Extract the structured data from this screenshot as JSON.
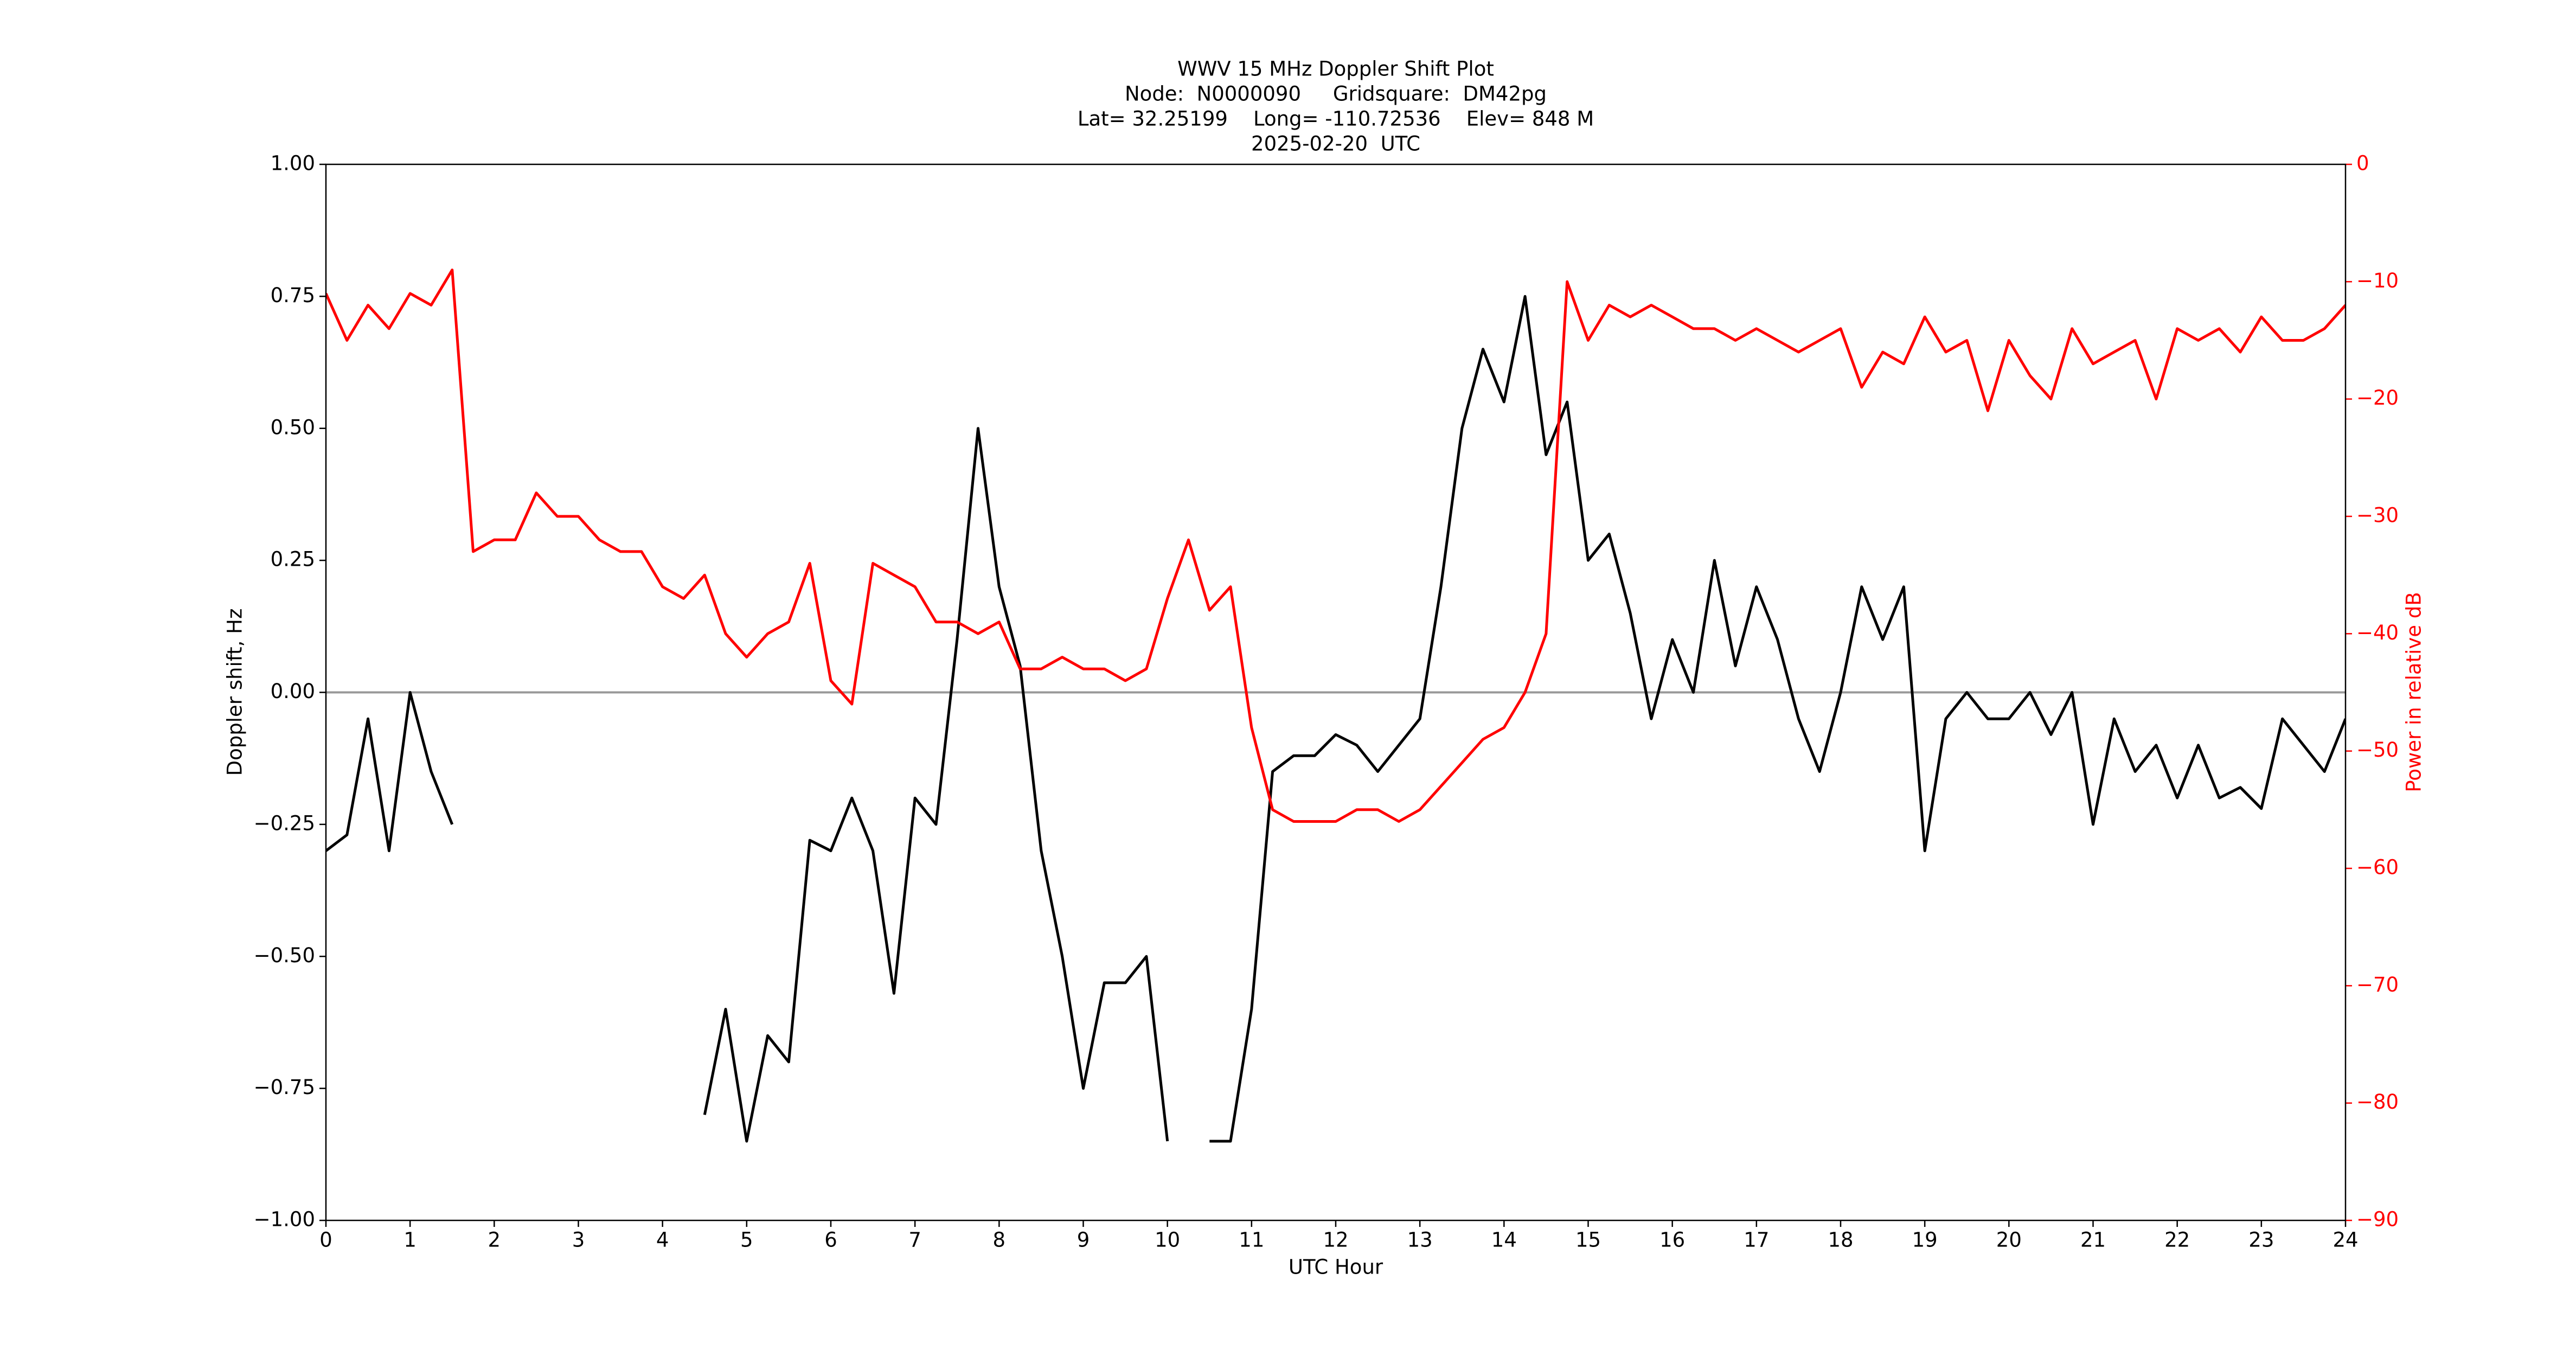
{
  "chart_data": {
    "type": "line",
    "title": "WWV 15 MHz Doppler Shift Plot",
    "subtitle": [
      "Node:  N0000090     Gridsquare:  DM42pg",
      "Lat= 32.25199    Long= -110.72536    Elev= 848 M",
      "2025-02-20  UTC"
    ],
    "xlabel": "UTC Hour",
    "ylabel": "Doppler shift, Hz",
    "y2label": "Power in relative dB",
    "x": [
      0,
      0.25,
      0.5,
      0.75,
      1,
      1.25,
      1.5,
      1.75,
      2,
      2.25,
      2.5,
      2.75,
      3,
      3.25,
      3.5,
      3.75,
      4,
      4.25,
      4.5,
      4.75,
      5,
      5.25,
      5.5,
      5.75,
      6,
      6.25,
      6.5,
      6.75,
      7,
      7.25,
      7.5,
      7.75,
      8,
      8.25,
      8.5,
      8.75,
      9,
      9.25,
      9.5,
      9.75,
      10,
      10.25,
      10.5,
      10.75,
      11,
      11.25,
      11.5,
      11.75,
      12,
      12.25,
      12.5,
      12.75,
      13,
      13.25,
      13.5,
      13.75,
      14,
      14.25,
      14.5,
      14.75,
      15,
      15.25,
      15.5,
      15.75,
      16,
      16.25,
      16.5,
      16.75,
      17,
      17.25,
      17.5,
      17.75,
      18,
      18.25,
      18.5,
      18.75,
      19,
      19.25,
      19.5,
      19.75,
      20,
      20.25,
      20.5,
      20.75,
      21,
      21.25,
      21.5,
      21.75,
      22,
      22.25,
      22.5,
      22.75,
      23,
      23.25,
      23.5,
      23.75,
      24
    ],
    "series": [
      {
        "name": "Doppler shift",
        "color": "#000000",
        "values": [
          -0.3,
          -0.27,
          -0.05,
          -0.3,
          0.0,
          -0.15,
          -0.25,
          null,
          null,
          null,
          null,
          null,
          null,
          null,
          null,
          null,
          null,
          null,
          -0.8,
          -0.6,
          -0.85,
          -0.65,
          -0.7,
          -0.28,
          -0.3,
          -0.2,
          -0.3,
          -0.57,
          -0.2,
          -0.25,
          0.1,
          0.5,
          0.2,
          0.05,
          -0.3,
          -0.5,
          -0.75,
          -0.55,
          -0.55,
          -0.5,
          -0.85,
          null,
          -0.85,
          -0.85,
          -0.6,
          -0.15,
          -0.12,
          -0.12,
          -0.08,
          -0.1,
          -0.15,
          -0.1,
          -0.05,
          0.2,
          0.5,
          0.65,
          0.55,
          0.75,
          0.45,
          0.55,
          0.25,
          0.3,
          0.15,
          -0.05,
          0.1,
          0.0,
          0.25,
          0.05,
          0.2,
          0.1,
          -0.05,
          -0.15,
          0.0,
          0.2,
          0.1,
          0.2,
          -0.3,
          -0.05,
          0.0,
          -0.05,
          -0.05,
          0.0,
          -0.08,
          0.0,
          -0.25,
          -0.05,
          -0.15,
          -0.1,
          -0.2,
          -0.1,
          -0.2,
          -0.18,
          -0.22,
          -0.05,
          -0.1,
          -0.15,
          -0.05
        ]
      },
      {
        "name": "Power",
        "color": "#ff0000",
        "axis": "y2",
        "values": [
          -11,
          -15,
          -12,
          -14,
          -11,
          -12,
          -9,
          -33,
          -32,
          -32,
          -28,
          -30,
          -30,
          -32,
          -33,
          -33,
          -36,
          -37,
          -35,
          -40,
          -42,
          -40,
          -39,
          -34,
          -44,
          -46,
          -34,
          -35,
          -36,
          -39,
          -39,
          -40,
          -39,
          -43,
          -43,
          -42,
          -43,
          -43,
          -44,
          -43,
          -37,
          -32,
          -38,
          -36,
          -48,
          -55,
          -56,
          -56,
          -56,
          -55,
          -55,
          -56,
          -55,
          -53,
          -51,
          -49,
          -48,
          -45,
          -40,
          -10,
          -15,
          -12,
          -13,
          -12,
          -13,
          -14,
          -14,
          -15,
          -14,
          -15,
          -16,
          -15,
          -14,
          -19,
          -16,
          -17,
          -13,
          -16,
          -15,
          -21,
          -15,
          -18,
          -20,
          -14,
          -17,
          -16,
          -15,
          -20,
          -14,
          -15,
          -14,
          -16,
          -13,
          -15,
          -15,
          -14,
          -12
        ]
      }
    ],
    "xlim": [
      0,
      24
    ],
    "xticks": [
      0,
      1,
      2,
      3,
      4,
      5,
      6,
      7,
      8,
      9,
      10,
      11,
      12,
      13,
      14,
      15,
      16,
      17,
      18,
      19,
      20,
      21,
      22,
      23,
      24
    ],
    "ylim": [
      -1,
      1
    ],
    "yticks": [
      {
        "value": -1,
        "label": "−1.00"
      },
      {
        "value": -0.75,
        "label": "−0.75"
      },
      {
        "value": -0.5,
        "label": "−0.50"
      },
      {
        "value": -0.25,
        "label": "−0.25"
      },
      {
        "value": 0,
        "label": "0.00"
      },
      {
        "value": 0.25,
        "label": "0.25"
      },
      {
        "value": 0.5,
        "label": "0.50"
      },
      {
        "value": 0.75,
        "label": "0.75"
      },
      {
        "value": 1,
        "label": "1.00"
      }
    ],
    "y2lim": [
      -90,
      0
    ],
    "y2ticks": [
      {
        "value": -90,
        "label": "−90"
      },
      {
        "value": -80,
        "label": "−80"
      },
      {
        "value": -70,
        "label": "−70"
      },
      {
        "value": -60,
        "label": "−60"
      },
      {
        "value": -50,
        "label": "−50"
      },
      {
        "value": -40,
        "label": "−40"
      },
      {
        "value": -30,
        "label": "−30"
      },
      {
        "value": -20,
        "label": "−20"
      },
      {
        "value": -10,
        "label": "−10"
      },
      0
    ],
    "y2color": "#ff0000",
    "hlines": [
      0
    ],
    "hline_color": "#999999"
  }
}
